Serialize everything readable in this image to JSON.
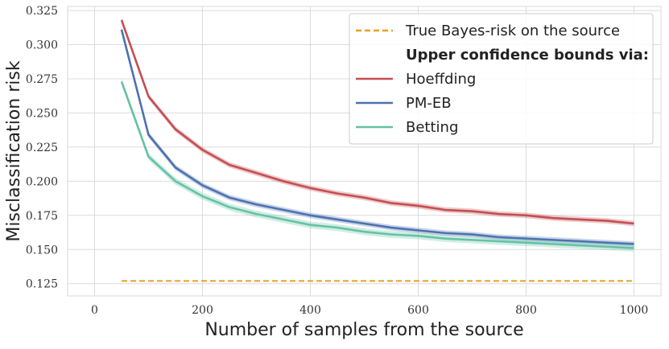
{
  "chart_data": {
    "type": "line",
    "title": "",
    "xlabel": "Number of samples from the source",
    "ylabel": "Misclassification risk",
    "xlim": [
      -50,
      1050
    ],
    "ylim": [
      0.116,
      0.328
    ],
    "xticks": [
      0,
      200,
      400,
      600,
      800,
      1000
    ],
    "xtick_labels": [
      "0",
      "200",
      "400",
      "600",
      "800",
      "1000"
    ],
    "yticks": [
      0.125,
      0.15,
      0.175,
      0.2,
      0.225,
      0.25,
      0.275,
      0.3,
      0.325
    ],
    "ytick_labels": [
      "0.125",
      "0.150",
      "0.175",
      "0.200",
      "0.225",
      "0.250",
      "0.275",
      "0.300",
      "0.325"
    ],
    "grid": true,
    "legend_position": "top-right",
    "legend_heading": "Upper confidence bounds via:",
    "x": [
      50,
      100,
      150,
      200,
      250,
      300,
      350,
      400,
      450,
      500,
      550,
      600,
      650,
      700,
      750,
      800,
      850,
      900,
      950,
      1000
    ],
    "reference_line": {
      "name": "True Bayes-risk on the source",
      "value": 0.127,
      "color": "#e8a020",
      "style": "dashed"
    },
    "series": [
      {
        "name": "Hoeffding",
        "color": "#c44e52",
        "band": 0.002,
        "values": [
          0.318,
          0.262,
          0.238,
          0.223,
          0.212,
          0.206,
          0.2,
          0.195,
          0.191,
          0.188,
          0.184,
          0.182,
          0.179,
          0.178,
          0.176,
          0.175,
          0.173,
          0.172,
          0.171,
          0.169
        ]
      },
      {
        "name": "PM-EB",
        "color": "#4c72b0",
        "band": 0.002,
        "values": [
          0.311,
          0.234,
          0.21,
          0.197,
          0.188,
          0.183,
          0.179,
          0.175,
          0.172,
          0.169,
          0.166,
          0.164,
          0.162,
          0.161,
          0.159,
          0.158,
          0.157,
          0.156,
          0.155,
          0.154
        ]
      },
      {
        "name": "Betting",
        "color": "#66c2a5",
        "band": 0.0025,
        "values": [
          0.273,
          0.218,
          0.2,
          0.189,
          0.181,
          0.176,
          0.172,
          0.168,
          0.166,
          0.163,
          0.161,
          0.16,
          0.158,
          0.157,
          0.156,
          0.155,
          0.154,
          0.153,
          0.152,
          0.151
        ]
      }
    ]
  }
}
